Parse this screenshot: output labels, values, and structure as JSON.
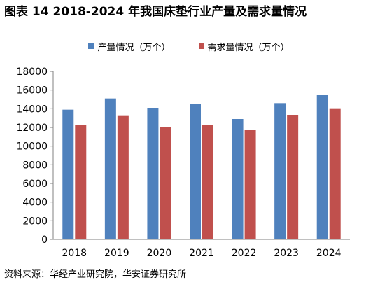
{
  "title": "图表 14 2018-2024 年我国床垫行业产量及需求量情况",
  "source": "资料来源：华经产业研究院，华安证券研究所",
  "colors": {
    "production": "#4f81bd",
    "demand": "#c0504d"
  },
  "chart_data": {
    "type": "bar",
    "categories": [
      "2018",
      "2019",
      "2020",
      "2021",
      "2022",
      "2023",
      "2024"
    ],
    "series": [
      {
        "name": "产量情况（万个）",
        "color": "#4f81bd",
        "values": [
          13900,
          15100,
          14100,
          14500,
          12900,
          14600,
          15450
        ]
      },
      {
        "name": "需求量情况（万个）",
        "color": "#c0504d",
        "values": [
          12300,
          13300,
          12000,
          12300,
          11700,
          13350,
          14050
        ]
      }
    ],
    "ylim": [
      0,
      18000
    ],
    "yticks": [
      "0",
      "2000",
      "4000",
      "6000",
      "8000",
      "10000",
      "12000",
      "14000",
      "16000",
      "18000"
    ],
    "grid": false,
    "legend_position": "top-center"
  }
}
